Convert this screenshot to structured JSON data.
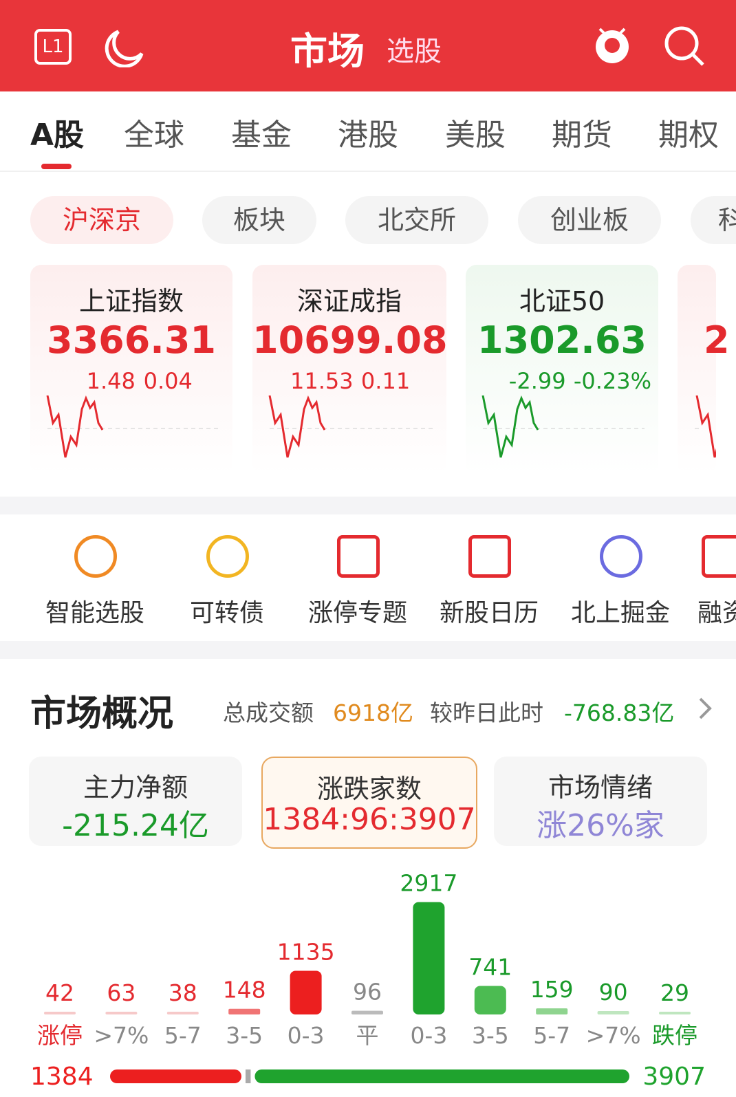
{
  "header": {
    "title": "市场",
    "subtitle": "选股",
    "left_icon": "L1"
  },
  "tabs": [
    "A股",
    "全球",
    "基金",
    "港股",
    "美股",
    "期货",
    "期权"
  ],
  "subtabs": [
    "沪深京",
    "板块",
    "北交所",
    "创业板",
    "科"
  ],
  "indices": [
    {
      "name": "上证指数",
      "value": "3366.31",
      "change": "1.48",
      "pct": "0.04",
      "color": "#e42a2f"
    },
    {
      "name": "深证成指",
      "value": "10699.08",
      "change": "11.53",
      "pct": "0.11",
      "color": "#e42a2f"
    },
    {
      "name": "北证50",
      "value": "1302.63",
      "change": "-2.99",
      "pct": "-0.23%",
      "color": "#1a9a2a"
    },
    {
      "name": "",
      "value": "2",
      "change": "",
      "pct": "",
      "color": "#e42a2f"
    }
  ],
  "tools": [
    "智能选股",
    "可转债",
    "涨停专题",
    "新股日历",
    "北上掘金",
    "融资"
  ],
  "overview": {
    "title": "市场概况",
    "turnover_label": "总成交额",
    "turnover": "6918亿",
    "compare_label": "较昨日此时",
    "compare": "-768.83亿"
  },
  "cards": [
    {
      "label": "主力净额",
      "value": "-215.24亿",
      "color": "#1a9a2a"
    },
    {
      "label": "涨跌家数",
      "value": "1384:96:3907",
      "color": "#e42a2f"
    },
    {
      "label": "市场情绪",
      "value": "涨26%家",
      "color": "#8f86d6"
    }
  ],
  "chart_data": {
    "type": "bar",
    "categories": [
      "涨停",
      ">7%",
      "5-7",
      "3-5",
      "0-3",
      "平",
      "0-3",
      "3-5",
      "5-7",
      ">7%",
      "跌停"
    ],
    "values": [
      42,
      63,
      38,
      148,
      1135,
      96,
      2917,
      741,
      159,
      90,
      29
    ],
    "colors": [
      "#f6c9c9",
      "#f6c9c9",
      "#f6c9c9",
      "#f07474",
      "#ec1f1f",
      "#bbbbbb",
      "#1fa32e",
      "#4cbb52",
      "#8fd48f",
      "#bfe6bf",
      "#bfe6bf"
    ],
    "label_colors": [
      "#e42a2f",
      "#888888",
      "#888888",
      "#888888",
      "#888888",
      "#888888",
      "#888888",
      "#888888",
      "#888888",
      "#888888",
      "#1a9a2a"
    ],
    "value_colors": [
      "#e42a2f",
      "#e42a2f",
      "#e42a2f",
      "#e42a2f",
      "#e42a2f",
      "#888888",
      "#1a9a2a",
      "#1a9a2a",
      "#1a9a2a",
      "#1a9a2a",
      "#1a9a2a"
    ]
  },
  "breadth": {
    "up": 1384,
    "flat": 96,
    "down": 3907,
    "up_color": "#ec1f1f",
    "flat_color": "#aaaaaa",
    "down_color": "#1fa32e"
  }
}
